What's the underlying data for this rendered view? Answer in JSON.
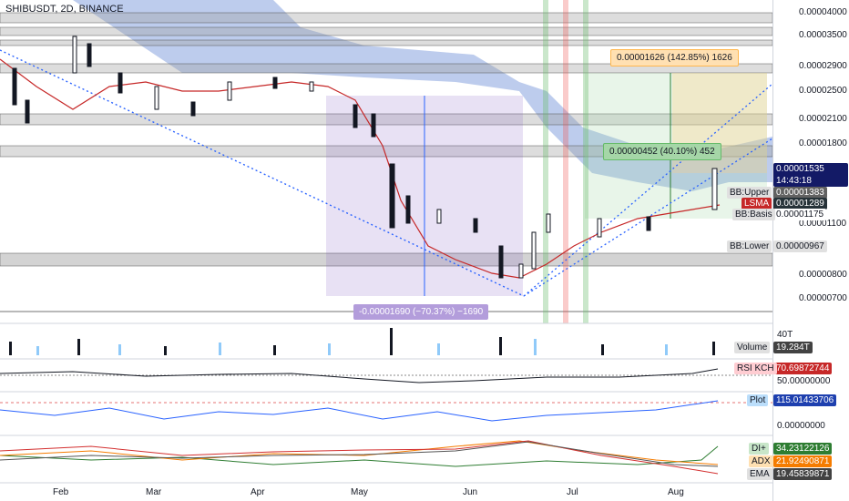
{
  "header": {
    "title": "SHIBUSDT, 2D, BINANCE"
  },
  "price_axis": {
    "labels": [
      "0.00004000",
      "0.00003500",
      "0.00002900",
      "0.00002500",
      "0.00002100",
      "0.00001800",
      "0.00001100",
      "0.00000800",
      "0.00000700"
    ],
    "current_price": "0.00001535",
    "countdown": "14:43:18"
  },
  "series_tags": {
    "bb_upper": {
      "name": "BB:Upper",
      "value": "0.00001383"
    },
    "lsma": {
      "name": "LSMA",
      "value": "0.00001289"
    },
    "bb_basis": {
      "name": "BB:Basis",
      "value": "0.00001175"
    },
    "bb_lower": {
      "name": "BB:Lower",
      "value": "0.00000967"
    }
  },
  "measure_boxes": {
    "top": "0.00001626 (142.85%) 1626",
    "mid": "0.00000452 (40.10%) 452",
    "down": "-0.00001690 (−70.37%) −1690"
  },
  "volume_pane": {
    "axis_label": "40T",
    "name": "Volume",
    "value": "19.284T"
  },
  "rsi_pane": {
    "name": "RSI KCH",
    "value": "70.69872744",
    "level": "50.00000000"
  },
  "plot_pane": {
    "name": "Plot",
    "value": "115.01433706",
    "zero": "0.00000000"
  },
  "dmi_pane": {
    "items": [
      {
        "name": "DI+",
        "value": "34.23122126",
        "color": "#2e7d32"
      },
      {
        "name": "ADX",
        "value": "21.92490871",
        "color": "#f57c00"
      },
      {
        "name": "EMA",
        "value": "19.45839871",
        "color": "#555555"
      }
    ]
  },
  "time_axis": [
    "Feb",
    "Mar",
    "Apr",
    "May",
    "Jun",
    "Jul",
    "Aug"
  ],
  "colors": {
    "up": "#2e7d32",
    "down": "#131722",
    "accent_blue": "#2962ff",
    "lsma_red": "#d32f2f"
  }
}
